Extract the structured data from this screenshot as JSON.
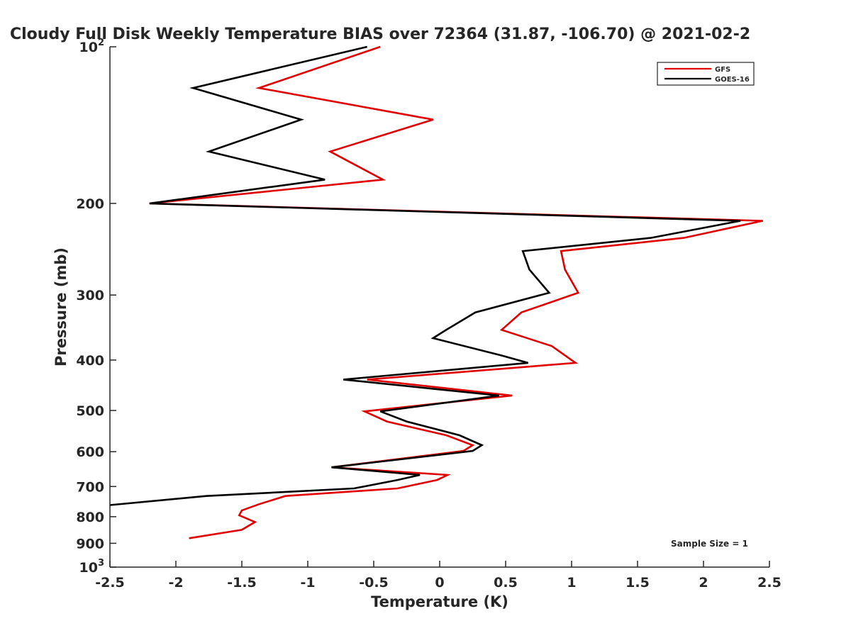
{
  "chart_data": {
    "type": "line",
    "title": "Cloudy Full Disk Weekly Temperature BIAS over 72364 (31.87, -106.70) @ 2021-02-2",
    "xlabel": "Temperature (K)",
    "ylabel": "Pressure (mb)",
    "xlim": [
      -2.5,
      2.5
    ],
    "ylim": [
      100,
      1000
    ],
    "y_scale": "log",
    "y_reversed": true,
    "grid": false,
    "legend_position": "top-right",
    "annotation": "Sample Size = 1",
    "x_ticks": [
      "-2.5",
      "-2",
      "-1.5",
      "-1",
      "-0.5",
      "0",
      "0.5",
      "1",
      "1.5",
      "2",
      "2.5"
    ],
    "y_ticks": [
      {
        "value": 100,
        "base": "10",
        "exp": "2"
      },
      {
        "value": 200,
        "base": "200",
        "exp": ""
      },
      {
        "value": 300,
        "base": "300",
        "exp": ""
      },
      {
        "value": 400,
        "base": "400",
        "exp": ""
      },
      {
        "value": 500,
        "base": "500",
        "exp": ""
      },
      {
        "value": 600,
        "base": "600",
        "exp": ""
      },
      {
        "value": 700,
        "base": "700",
        "exp": ""
      },
      {
        "value": 800,
        "base": "800",
        "exp": ""
      },
      {
        "value": 900,
        "base": "900",
        "exp": ""
      },
      {
        "value": 1000,
        "base": "10",
        "exp": "3"
      }
    ],
    "series": [
      {
        "name": "GFS",
        "color": "#e00000",
        "points": [
          [
            -0.45,
            100
          ],
          [
            -1.37,
            120
          ],
          [
            -0.05,
            138
          ],
          [
            -0.83,
            159
          ],
          [
            -0.43,
            180
          ],
          [
            -2.2,
            200
          ],
          [
            2.45,
            216
          ],
          [
            1.85,
            233
          ],
          [
            0.92,
            247
          ],
          [
            0.95,
            268
          ],
          [
            1.05,
            297
          ],
          [
            0.62,
            324
          ],
          [
            0.47,
            350
          ],
          [
            0.85,
            376
          ],
          [
            1.03,
            405
          ],
          [
            -0.55,
            436
          ],
          [
            0.55,
            468
          ],
          [
            -0.57,
            502
          ],
          [
            -0.4,
            525
          ],
          [
            0.05,
            558
          ],
          [
            0.25,
            583
          ],
          [
            0.18,
            598
          ],
          [
            -0.82,
            643
          ],
          [
            0.06,
            665
          ],
          [
            -0.02,
            680
          ],
          [
            -0.32,
            706
          ],
          [
            -1.17,
            730
          ],
          [
            -1.37,
            757
          ],
          [
            -1.5,
            778
          ],
          [
            -1.52,
            795
          ],
          [
            -1.4,
            819
          ],
          [
            -1.5,
            848
          ],
          [
            -1.9,
            880
          ]
        ]
      },
      {
        "name": "GOES-16",
        "color": "#000000",
        "points": [
          [
            -0.55,
            100
          ],
          [
            -1.87,
            120
          ],
          [
            -1.05,
            138
          ],
          [
            -1.75,
            159
          ],
          [
            -0.87,
            180
          ],
          [
            -2.2,
            200
          ],
          [
            2.28,
            216
          ],
          [
            1.6,
            233
          ],
          [
            0.63,
            247
          ],
          [
            0.68,
            268
          ],
          [
            0.83,
            297
          ],
          [
            0.27,
            324
          ],
          [
            0.05,
            350
          ],
          [
            -0.05,
            363
          ],
          [
            0.47,
            392
          ],
          [
            0.67,
            405
          ],
          [
            -0.73,
            436
          ],
          [
            0.45,
            468
          ],
          [
            -0.45,
            502
          ],
          [
            -0.25,
            525
          ],
          [
            0.15,
            558
          ],
          [
            0.32,
            583
          ],
          [
            0.25,
            598
          ],
          [
            -0.82,
            643
          ],
          [
            -0.15,
            665
          ],
          [
            -0.32,
            680
          ],
          [
            -0.65,
            706
          ],
          [
            -1.77,
            730
          ],
          [
            -2.5,
            760
          ]
        ]
      }
    ]
  }
}
